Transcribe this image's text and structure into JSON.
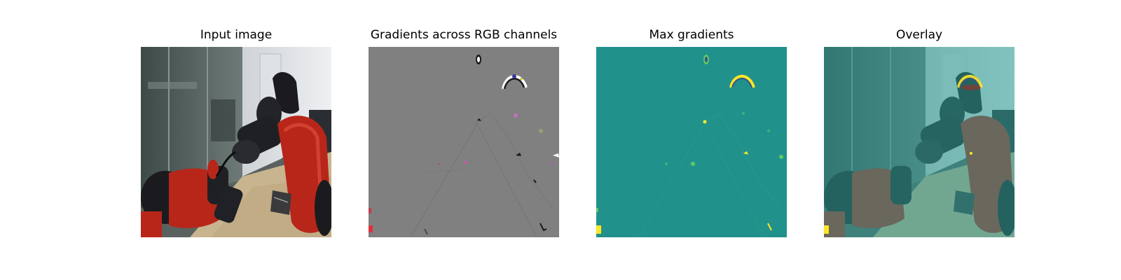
{
  "figure": {
    "panels": [
      {
        "title": "Input image"
      },
      {
        "title": "Gradients across RGB channels"
      },
      {
        "title": "Max gradients"
      },
      {
        "title": "Overlay"
      }
    ]
  },
  "colors": {
    "gradient_background": "#808080",
    "max_gradient_background": "#21918c",
    "overlay_tint": "#4fb3ad",
    "highlight_yellow": "#fde725",
    "robot_red": "#b8261a",
    "robot_black": "#1b1b1f",
    "floor": "#c8b48e"
  }
}
